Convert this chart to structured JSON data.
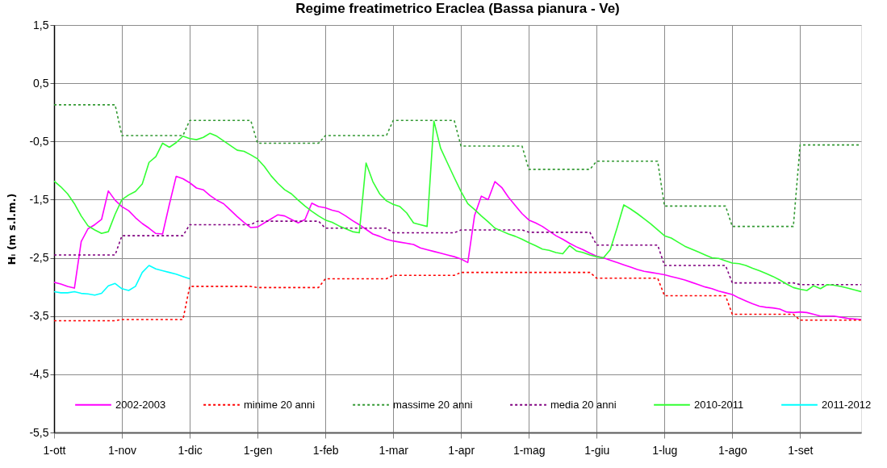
{
  "chart_data": {
    "type": "line",
    "title": "Regime freatimetrico Eraclea (Bassa pianura - Ve)",
    "ylabel": "Hᵢ (m s.l.m.)",
    "categories": [
      "1-ott",
      null,
      null,
      null,
      null,
      null,
      null,
      null,
      null,
      null,
      "1-nov",
      null,
      null,
      null,
      null,
      null,
      null,
      null,
      null,
      null,
      "1-dic",
      null,
      null,
      null,
      null,
      null,
      null,
      null,
      null,
      null,
      "1-gen",
      null,
      null,
      null,
      null,
      null,
      null,
      null,
      null,
      null,
      "1-feb",
      null,
      null,
      null,
      null,
      null,
      null,
      null,
      null,
      null,
      "1-mar",
      null,
      null,
      null,
      null,
      null,
      null,
      null,
      null,
      null,
      "1-apr",
      null,
      null,
      null,
      null,
      null,
      null,
      null,
      null,
      null,
      "1-mag",
      null,
      null,
      null,
      null,
      null,
      null,
      null,
      null,
      null,
      "1-giu",
      null,
      null,
      null,
      null,
      null,
      null,
      null,
      null,
      null,
      "1-lug",
      null,
      null,
      null,
      null,
      null,
      null,
      null,
      null,
      null,
      "1-ago",
      null,
      null,
      null,
      null,
      null,
      null,
      null,
      null,
      null,
      "1-set",
      null,
      null,
      null,
      null,
      null,
      null,
      null,
      null,
      null
    ],
    "ylim": [
      -5.5,
      1.5
    ],
    "yticks": [
      {
        "value": -5.5,
        "label": "-5,5"
      },
      {
        "value": -4.5,
        "label": "-4,5"
      },
      {
        "value": -3.5,
        "label": "-3,5"
      },
      {
        "value": -2.5,
        "label": "-2,5"
      },
      {
        "value": -1.5,
        "label": "-1,5"
      },
      {
        "value": -0.5,
        "label": "-0,5"
      },
      {
        "value": 0.5,
        "label": "0,5"
      },
      {
        "value": 1.5,
        "label": "1,5"
      }
    ],
    "grid": true,
    "legend": "bottom",
    "marker": "none",
    "line_style": "solid",
    "series": [
      {
        "name": "2002-2003",
        "color": "#ff00ff",
        "values": [
          -2.92,
          -2.95,
          -2.99,
          -3.02,
          -2.22,
          -2.0,
          -1.93,
          -1.84,
          -1.35,
          -1.51,
          -1.62,
          -1.69,
          -1.81,
          -1.91,
          -1.99,
          -2.08,
          -2.09,
          -1.58,
          -1.1,
          -1.14,
          -1.21,
          -1.3,
          -1.33,
          -1.43,
          -1.51,
          -1.57,
          -1.68,
          -1.79,
          -1.89,
          -1.98,
          -1.97,
          -1.9,
          -1.83,
          -1.76,
          -1.78,
          -1.84,
          -1.9,
          -1.84,
          -1.56,
          -1.62,
          -1.64,
          -1.68,
          -1.71,
          -1.78,
          -1.86,
          -1.93,
          -2.01,
          -2.09,
          -2.13,
          -2.18,
          -2.21,
          -2.23,
          -2.25,
          -2.27,
          -2.33,
          -2.36,
          -2.39,
          -2.42,
          -2.45,
          -2.48,
          -2.52,
          -2.58,
          -1.77,
          -1.44,
          -1.5,
          -1.19,
          -1.29,
          -1.46,
          -1.6,
          -1.74,
          -1.85,
          -1.9,
          -1.96,
          -2.04,
          -2.12,
          -2.18,
          -2.25,
          -2.31,
          -2.36,
          -2.42,
          -2.47,
          -2.5,
          -2.54,
          -2.58,
          -2.62,
          -2.66,
          -2.7,
          -2.73,
          -2.75,
          -2.77,
          -2.79,
          -2.82,
          -2.85,
          -2.88,
          -2.92,
          -2.96,
          -3.0,
          -3.03,
          -3.07,
          -3.1,
          -3.13,
          -3.19,
          -3.24,
          -3.29,
          -3.33,
          -3.35,
          -3.36,
          -3.38,
          -3.43,
          -3.44,
          -3.43,
          -3.44,
          -3.47,
          -3.5,
          -3.5,
          -3.5,
          -3.52,
          -3.54,
          -3.55,
          -3.56
        ]
      },
      {
        "name": "minime 20 anni",
        "color": "#ff0000",
        "line_style": "dotted",
        "values": [
          -3.58,
          -3.58,
          -3.58,
          -3.58,
          -3.58,
          -3.58,
          -3.58,
          -3.58,
          -3.58,
          -3.58,
          -3.56,
          -3.56,
          -3.56,
          -3.56,
          -3.56,
          -3.56,
          -3.56,
          -3.56,
          -3.56,
          -3.56,
          -2.99,
          -2.99,
          -2.99,
          -2.99,
          -2.99,
          -2.99,
          -2.99,
          -2.99,
          -2.99,
          -2.99,
          -3.01,
          -3.01,
          -3.01,
          -3.01,
          -3.01,
          -3.01,
          -3.01,
          -3.01,
          -3.01,
          -3.01,
          -2.86,
          -2.86,
          -2.86,
          -2.86,
          -2.86,
          -2.86,
          -2.86,
          -2.86,
          -2.86,
          -2.86,
          -2.8,
          -2.8,
          -2.8,
          -2.8,
          -2.8,
          -2.8,
          -2.8,
          -2.8,
          -2.8,
          -2.8,
          -2.75,
          -2.75,
          -2.75,
          -2.75,
          -2.75,
          -2.75,
          -2.75,
          -2.75,
          -2.75,
          -2.75,
          -2.75,
          -2.75,
          -2.75,
          -2.75,
          -2.75,
          -2.75,
          -2.75,
          -2.75,
          -2.75,
          -2.75,
          -2.85,
          -2.85,
          -2.85,
          -2.85,
          -2.85,
          -2.85,
          -2.85,
          -2.85,
          -2.85,
          -2.85,
          -3.15,
          -3.15,
          -3.15,
          -3.15,
          -3.15,
          -3.15,
          -3.15,
          -3.15,
          -3.15,
          -3.15,
          -3.47,
          -3.47,
          -3.47,
          -3.47,
          -3.47,
          -3.47,
          -3.47,
          -3.47,
          -3.47,
          -3.47,
          -3.57,
          -3.57,
          -3.57,
          -3.57,
          -3.57,
          -3.57,
          -3.57,
          -3.57,
          -3.57,
          -3.57
        ]
      },
      {
        "name": "massime 20 anni",
        "color": "#339933",
        "line_style": "dotted",
        "values": [
          0.13,
          0.13,
          0.13,
          0.13,
          0.13,
          0.13,
          0.13,
          0.13,
          0.13,
          0.13,
          -0.4,
          -0.4,
          -0.4,
          -0.4,
          -0.4,
          -0.4,
          -0.4,
          -0.4,
          -0.4,
          -0.4,
          -0.14,
          -0.14,
          -0.14,
          -0.14,
          -0.14,
          -0.14,
          -0.14,
          -0.14,
          -0.14,
          -0.14,
          -0.53,
          -0.53,
          -0.53,
          -0.53,
          -0.53,
          -0.53,
          -0.53,
          -0.53,
          -0.53,
          -0.53,
          -0.4,
          -0.4,
          -0.4,
          -0.4,
          -0.4,
          -0.4,
          -0.4,
          -0.4,
          -0.4,
          -0.4,
          -0.14,
          -0.14,
          -0.14,
          -0.14,
          -0.14,
          -0.14,
          -0.14,
          -0.14,
          -0.14,
          -0.14,
          -0.58,
          -0.58,
          -0.58,
          -0.58,
          -0.58,
          -0.58,
          -0.58,
          -0.58,
          -0.58,
          -0.58,
          -0.98,
          -0.98,
          -0.98,
          -0.98,
          -0.98,
          -0.98,
          -0.98,
          -0.98,
          -0.98,
          -0.98,
          -0.84,
          -0.84,
          -0.84,
          -0.84,
          -0.84,
          -0.84,
          -0.84,
          -0.84,
          -0.84,
          -0.84,
          -1.61,
          -1.61,
          -1.61,
          -1.61,
          -1.61,
          -1.61,
          -1.61,
          -1.61,
          -1.61,
          -1.61,
          -1.96,
          -1.96,
          -1.96,
          -1.96,
          -1.96,
          -1.96,
          -1.96,
          -1.96,
          -1.96,
          -1.96,
          -0.56,
          -0.56,
          -0.56,
          -0.56,
          -0.56,
          -0.56,
          -0.56,
          -0.56,
          -0.56,
          -0.56
        ]
      },
      {
        "name": "media 20 anni",
        "color": "#800080",
        "line_style": "dotted",
        "values": [
          -2.45,
          -2.45,
          -2.45,
          -2.45,
          -2.45,
          -2.45,
          -2.45,
          -2.45,
          -2.45,
          -2.45,
          -2.12,
          -2.12,
          -2.12,
          -2.12,
          -2.12,
          -2.12,
          -2.12,
          -2.12,
          -2.12,
          -2.12,
          -1.93,
          -1.93,
          -1.93,
          -1.93,
          -1.93,
          -1.93,
          -1.93,
          -1.93,
          -1.93,
          -1.93,
          -1.87,
          -1.87,
          -1.87,
          -1.87,
          -1.87,
          -1.87,
          -1.87,
          -1.87,
          -1.87,
          -1.87,
          -1.99,
          -1.99,
          -1.99,
          -1.99,
          -1.99,
          -1.99,
          -1.99,
          -1.99,
          -1.99,
          -1.99,
          -2.07,
          -2.07,
          -2.07,
          -2.07,
          -2.07,
          -2.07,
          -2.07,
          -2.07,
          -2.07,
          -2.07,
          -2.02,
          -2.02,
          -2.02,
          -2.02,
          -2.02,
          -2.02,
          -2.02,
          -2.02,
          -2.02,
          -2.02,
          -2.06,
          -2.06,
          -2.06,
          -2.06,
          -2.06,
          -2.06,
          -2.06,
          -2.06,
          -2.06,
          -2.06,
          -2.28,
          -2.28,
          -2.28,
          -2.28,
          -2.28,
          -2.28,
          -2.28,
          -2.28,
          -2.28,
          -2.28,
          -2.63,
          -2.63,
          -2.63,
          -2.63,
          -2.63,
          -2.63,
          -2.63,
          -2.63,
          -2.63,
          -2.63,
          -2.93,
          -2.93,
          -2.93,
          -2.93,
          -2.93,
          -2.93,
          -2.93,
          -2.93,
          -2.93,
          -2.93,
          -2.96,
          -2.96,
          -2.96,
          -2.96,
          -2.96,
          -2.96,
          -2.96,
          -2.96,
          -2.96,
          -2.96
        ]
      },
      {
        "name": "2010-2011",
        "color": "#33ff33",
        "values": [
          -1.18,
          -1.28,
          -1.4,
          -1.57,
          -1.78,
          -1.95,
          -2.02,
          -2.08,
          -2.05,
          -1.75,
          -1.5,
          -1.42,
          -1.36,
          -1.23,
          -0.86,
          -0.76,
          -0.53,
          -0.6,
          -0.52,
          -0.41,
          -0.45,
          -0.47,
          -0.43,
          -0.36,
          -0.41,
          -0.49,
          -0.57,
          -0.65,
          -0.67,
          -0.73,
          -0.8,
          -0.93,
          -1.09,
          -1.22,
          -1.33,
          -1.4,
          -1.51,
          -1.61,
          -1.7,
          -1.78,
          -1.85,
          -1.89,
          -1.95,
          -2.0,
          -2.05,
          -2.07,
          -0.87,
          -1.19,
          -1.4,
          -1.52,
          -1.58,
          -1.62,
          -1.73,
          -1.9,
          -1.93,
          -1.96,
          -0.15,
          -0.62,
          -0.87,
          -1.12,
          -1.36,
          -1.57,
          -1.67,
          -1.78,
          -1.88,
          -1.99,
          -2.04,
          -2.09,
          -2.13,
          -2.18,
          -2.24,
          -2.29,
          -2.35,
          -2.37,
          -2.41,
          -2.43,
          -2.29,
          -2.38,
          -2.41,
          -2.45,
          -2.48,
          -2.5,
          -2.36,
          -1.99,
          -1.59,
          -1.66,
          -1.74,
          -1.83,
          -1.92,
          -2.02,
          -2.12,
          -2.16,
          -2.23,
          -2.3,
          -2.35,
          -2.4,
          -2.45,
          -2.5,
          -2.51,
          -2.55,
          -2.59,
          -2.6,
          -2.63,
          -2.68,
          -2.72,
          -2.77,
          -2.82,
          -2.88,
          -2.95,
          -3.01,
          -3.04,
          -3.06,
          -2.98,
          -3.03,
          -2.96,
          -2.97,
          -2.99,
          -3.02,
          -3.05,
          -3.08
        ]
      },
      {
        "name": "2011-2012",
        "color": "#00ffff",
        "values": [
          -3.08,
          -3.1,
          -3.1,
          -3.08,
          -3.11,
          -3.12,
          -3.14,
          -3.11,
          -2.98,
          -2.94,
          -3.03,
          -3.06,
          -2.99,
          -2.75,
          -2.63,
          -2.69,
          -2.72,
          -2.75,
          -2.78,
          -2.82,
          -2.86,
          null,
          null,
          null,
          null,
          null,
          null,
          null,
          null,
          null,
          null,
          null,
          null,
          null,
          null,
          null,
          null,
          null,
          null,
          null,
          null,
          null,
          null,
          null,
          null,
          null,
          null,
          null,
          null,
          null,
          null,
          null,
          null,
          null,
          null,
          null,
          null,
          null,
          null,
          null,
          null,
          null,
          null,
          null,
          null,
          null,
          null,
          null,
          null,
          null,
          null,
          null,
          null,
          null,
          null,
          null,
          null,
          null,
          null,
          null,
          null,
          null,
          null,
          null,
          null,
          null,
          null,
          null,
          null,
          null,
          null,
          null,
          null,
          null,
          null,
          null,
          null,
          null,
          null,
          null,
          null,
          null,
          null,
          null,
          null,
          null,
          null,
          null,
          null,
          null,
          null,
          null,
          null,
          null,
          null,
          null,
          null,
          null,
          null,
          null
        ]
      }
    ]
  }
}
